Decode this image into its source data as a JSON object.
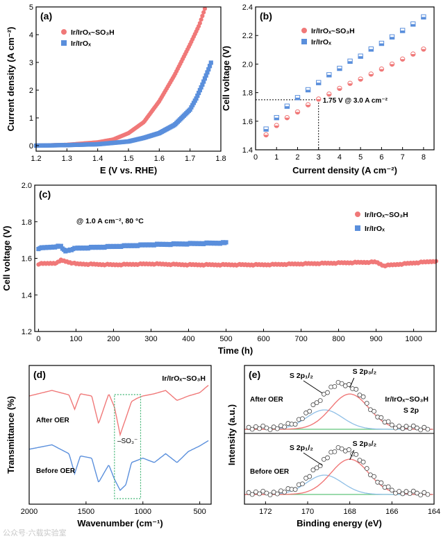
{
  "watermark": "公众号·六载实验室",
  "colors": {
    "red": "#f07878",
    "red_dark": "#e05a5a",
    "blue": "#5a8fdc",
    "blue_dark": "#3d78d0",
    "green": "#5fc47a",
    "light_blue": "#8fbfe6",
    "inset_box": "#3cb371"
  },
  "chart_data": [
    {
      "id": "a",
      "panel_label": "(a)",
      "type": "scatter",
      "xlabel": "E (V vs. RHE)",
      "ylabel": "Current density (A cm⁻²)",
      "xlim": [
        1.2,
        1.8
      ],
      "ylim": [
        -0.2,
        5
      ],
      "xticks": [
        "1.2",
        "1.3",
        "1.4",
        "1.5",
        "1.6",
        "1.7",
        "1.8"
      ],
      "yticks": [
        "0",
        "1",
        "2",
        "3",
        "4",
        "5"
      ],
      "legend": [
        {
          "text": "Ir/IrOₓ~SO₃H",
          "color": "red",
          "marker": "circle"
        },
        {
          "text": "Ir/IrOₓ",
          "color": "blue",
          "marker": "square"
        }
      ],
      "series": [
        {
          "color": "red",
          "marker": "circle",
          "x": [
            1.2,
            1.3,
            1.4,
            1.45,
            1.5,
            1.55,
            1.6,
            1.65,
            1.7,
            1.73,
            1.75
          ],
          "y": [
            0.0,
            0.03,
            0.12,
            0.22,
            0.45,
            0.85,
            1.6,
            2.55,
            3.65,
            4.35,
            5.0
          ]
        },
        {
          "color": "blue",
          "marker": "square",
          "x": [
            1.2,
            1.3,
            1.4,
            1.5,
            1.55,
            1.6,
            1.65,
            1.7,
            1.72,
            1.74,
            1.76,
            1.77
          ],
          "y": [
            0.0,
            0.02,
            0.05,
            0.15,
            0.28,
            0.45,
            0.75,
            1.3,
            1.7,
            2.2,
            2.75,
            3.05
          ]
        }
      ]
    },
    {
      "id": "b",
      "panel_label": "(b)",
      "type": "scatter",
      "xlabel": "Current density (A cm⁻²)",
      "ylabel": "Cell voltage (V)",
      "xlim": [
        0,
        8.5
      ],
      "ylim": [
        1.4,
        2.4
      ],
      "xticks": [
        "0",
        "1",
        "2",
        "3",
        "4",
        "5",
        "6",
        "7",
        "8"
      ],
      "yticks": [
        "1.4",
        "1.6",
        "1.8",
        "2.0",
        "2.2",
        "2.4"
      ],
      "legend": [
        {
          "text": "Ir/IrOₓ~SO₃H",
          "color": "red",
          "marker": "circle"
        },
        {
          "text": "Ir/IrOₓ",
          "color": "blue",
          "marker": "square"
        }
      ],
      "annotation": {
        "text": "1.75 V @ 3.0 A cm⁻²",
        "x": 3.0,
        "y": 1.75
      },
      "series": [
        {
          "color": "red",
          "marker": "circle",
          "x": [
            0.5,
            1,
            1.5,
            2,
            2.5,
            3,
            3.5,
            4,
            4.5,
            5,
            5.5,
            6,
            6.5,
            7,
            7.5,
            8
          ],
          "y": [
            1.505,
            1.57,
            1.625,
            1.665,
            1.715,
            1.755,
            1.79,
            1.83,
            1.865,
            1.895,
            1.93,
            1.965,
            2.0,
            2.035,
            2.07,
            2.105
          ]
        },
        {
          "color": "blue",
          "marker": "square",
          "x": [
            0.5,
            1,
            1.5,
            2,
            2.5,
            3,
            3.5,
            4,
            4.5,
            5,
            5.5,
            6,
            6.5,
            7,
            7.5,
            8
          ],
          "y": [
            1.545,
            1.625,
            1.705,
            1.765,
            1.82,
            1.87,
            1.925,
            1.97,
            2.02,
            2.055,
            2.105,
            2.145,
            2.19,
            2.235,
            2.28,
            2.33
          ]
        }
      ]
    },
    {
      "id": "c",
      "panel_label": "(c)",
      "type": "scatter",
      "xlabel": "Time (h)",
      "ylabel": "Cell voltage (V)",
      "xlim": [
        -10,
        1060
      ],
      "ylim": [
        1.2,
        2.0
      ],
      "xticks": [
        "0",
        "100",
        "200",
        "300",
        "400",
        "500",
        "600",
        "700",
        "800",
        "900",
        "1000"
      ],
      "yticks": [
        "1.2",
        "1.4",
        "1.6",
        "1.8",
        "2.0"
      ],
      "legend": [
        {
          "text": "Ir/IrOₓ~SO₃H",
          "color": "red",
          "marker": "circle"
        },
        {
          "text": "Ir/IrOₓ",
          "color": "blue",
          "marker": "square"
        }
      ],
      "annotation": {
        "text": "@ 1.0 A cm⁻², 80 °C"
      },
      "series": [
        {
          "color": "red",
          "marker": "circle",
          "x": [
            0,
            50,
            60,
            100,
            200,
            300,
            400,
            500,
            600,
            700,
            800,
            900,
            920,
            1000,
            1060
          ],
          "y": [
            1.57,
            1.575,
            1.59,
            1.57,
            1.565,
            1.57,
            1.565,
            1.565,
            1.565,
            1.57,
            1.575,
            1.58,
            1.56,
            1.575,
            1.585
          ]
        },
        {
          "color": "blue",
          "marker": "square",
          "x": [
            0,
            50,
            60,
            70,
            100,
            200,
            300,
            400,
            500
          ],
          "y": [
            1.655,
            1.665,
            1.665,
            1.64,
            1.655,
            1.665,
            1.675,
            1.68,
            1.685
          ]
        }
      ]
    },
    {
      "id": "d",
      "panel_label": "(d)",
      "type": "line",
      "xlabel": "Wavenumber (cm⁻¹)",
      "ylabel": "Transmittance (%)",
      "xlim": [
        2000,
        400
      ],
      "xticks": [
        "2000",
        "1500",
        "1000",
        "500"
      ],
      "title_in_plot": "Ir/IrOₓ~SO₃H",
      "curve_labels": [
        "After OER",
        "Before OER"
      ],
      "inset_label": "–SO₃⁻",
      "series": [
        {
          "color": "red",
          "x": [
            2000,
            1800,
            1650,
            1600,
            1550,
            1450,
            1390,
            1300,
            1250,
            1200,
            1150,
            1100,
            1050,
            1000,
            900,
            800,
            700,
            600,
            500,
            420
          ],
          "y": [
            0.9,
            0.95,
            0.91,
            0.78,
            0.92,
            0.9,
            0.65,
            0.92,
            0.8,
            0.55,
            0.7,
            0.85,
            0.88,
            0.9,
            0.92,
            0.95,
            0.86,
            0.9,
            0.93,
            1.0
          ]
        },
        {
          "color": "blue",
          "x": [
            2000,
            1800,
            1650,
            1600,
            1550,
            1450,
            1390,
            1300,
            1250,
            1200,
            1150,
            1100,
            1050,
            1000,
            900,
            800,
            700,
            600,
            500,
            420
          ],
          "y": [
            0.42,
            0.46,
            0.38,
            0.2,
            0.36,
            0.34,
            0.12,
            0.28,
            0.15,
            0.05,
            0.1,
            0.3,
            0.32,
            0.34,
            0.3,
            0.38,
            0.3,
            0.4,
            0.45,
            0.5
          ]
        }
      ]
    },
    {
      "id": "e",
      "panel_label": "(e)",
      "type": "scatter",
      "xlabel": "Binding energy (eV)",
      "ylabel": "Intensity (a.u.)",
      "xlim": [
        173,
        164
      ],
      "xticks": [
        "172",
        "170",
        "168",
        "166",
        "164"
      ],
      "title_in_plot": [
        "Ir/IrOₓ~SO₃H",
        "S 2p"
      ],
      "curve_labels": [
        "After OER",
        "Before OER"
      ],
      "peak_labels": [
        "S 2p₁/₂",
        "S 2p₃/₂"
      ]
    }
  ]
}
